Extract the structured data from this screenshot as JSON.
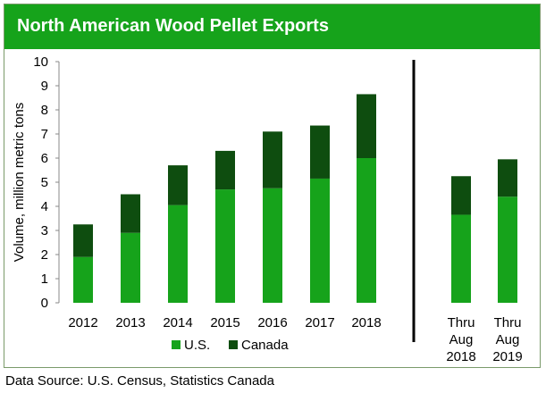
{
  "chart_data": {
    "type": "bar",
    "stacked": true,
    "title": "North American Wood Pellet Exports",
    "ylabel": "Volume, million metric tons",
    "ylim": [
      0,
      10
    ],
    "yticks": [
      0,
      1,
      2,
      3,
      4,
      5,
      6,
      7,
      8,
      9,
      10
    ],
    "grid": false,
    "legend": "bottom-left",
    "groups": [
      {
        "categories": [
          "2012",
          "2013",
          "2014",
          "2015",
          "2016",
          "2017",
          "2018"
        ],
        "series": [
          {
            "name": "U.S.",
            "color": "#16a31b",
            "values": [
              1.9,
              2.9,
              4.05,
              4.7,
              4.75,
              5.15,
              6.0
            ]
          },
          {
            "name": "Canada",
            "color": "#0e4d0f",
            "values": [
              1.35,
              1.6,
              1.65,
              1.6,
              2.35,
              2.2,
              2.65
            ]
          }
        ]
      },
      {
        "categories": [
          [
            "Thru",
            "Aug",
            "2018"
          ],
          [
            "Thru",
            "Aug",
            "2019"
          ]
        ],
        "series": [
          {
            "name": "U.S.",
            "color": "#16a31b",
            "values": [
              3.65,
              4.4
            ]
          },
          {
            "name": "Canada",
            "color": "#0e4d0f",
            "values": [
              1.6,
              1.55
            ]
          }
        ]
      }
    ]
  },
  "source": "Data Source: U.S. Census, Statistics Canada"
}
